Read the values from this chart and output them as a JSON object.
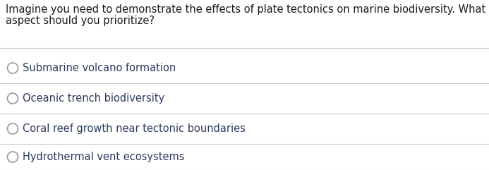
{
  "question_line1": "Imagine you need to demonstrate the effects of plate tectonics on marine biodiversity. What",
  "question_line2": "aspect should you prioritize?",
  "options": [
    "Submarine volcano formation",
    "Oceanic trench biodiversity",
    "Coral reef growth near tectonic boundaries",
    "Hydrothermal vent ecosystems"
  ],
  "background_color": "#ffffff",
  "text_color": "#2e3a5f",
  "question_color": "#1a1a1a",
  "circle_edgecolor": "#999999",
  "line_color": "#cccccc",
  "question_fontsize": 10.5,
  "option_fontsize": 10.5,
  "fig_width": 6.93,
  "fig_height": 2.41,
  "dpi": 100
}
